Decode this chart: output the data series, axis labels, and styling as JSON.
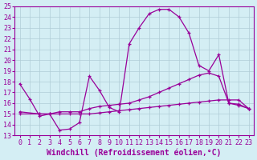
{
  "background_color": "#d4eef4",
  "grid_color": "#b0ccd6",
  "line_color": "#990099",
  "xlim": [
    -0.5,
    23.5
  ],
  "ylim": [
    13,
    25
  ],
  "xlabel": "Windchill (Refroidissement éolien,°C)",
  "xlabel_fontsize": 7.0,
  "xticks": [
    0,
    1,
    2,
    3,
    4,
    5,
    6,
    7,
    8,
    9,
    10,
    11,
    12,
    13,
    14,
    15,
    16,
    17,
    18,
    19,
    20,
    21,
    22,
    23
  ],
  "yticks": [
    13,
    14,
    15,
    16,
    17,
    18,
    19,
    20,
    21,
    22,
    23,
    24,
    25
  ],
  "tick_fontsize": 6.0,
  "curve1_x": [
    0,
    1,
    2,
    3,
    4,
    5,
    6,
    7,
    8,
    9,
    10,
    11,
    12,
    13,
    14,
    15,
    16,
    17,
    18,
    19,
    20,
    21,
    22,
    23
  ],
  "curve1_y": [
    17.8,
    16.4,
    14.8,
    15.0,
    13.5,
    13.6,
    14.2,
    18.5,
    17.2,
    15.6,
    15.2,
    21.5,
    23.0,
    24.3,
    24.7,
    24.7,
    24.0,
    22.5,
    19.5,
    19.0,
    20.5,
    16.0,
    15.9,
    15.5
  ],
  "curve2_x": [
    0,
    2,
    3,
    4,
    5,
    6,
    7,
    8,
    9,
    10,
    11,
    12,
    13,
    14,
    15,
    16,
    17,
    18,
    19,
    20,
    21,
    22,
    23
  ],
  "curve2_y": [
    15.2,
    15.0,
    15.0,
    15.2,
    15.2,
    15.2,
    15.5,
    15.7,
    15.8,
    15.9,
    16.0,
    16.3,
    16.6,
    17.0,
    17.4,
    17.8,
    18.2,
    18.6,
    18.8,
    18.5,
    16.0,
    15.8,
    15.5
  ],
  "curve3_x": [
    0,
    2,
    3,
    4,
    5,
    6,
    7,
    8,
    9,
    10,
    11,
    12,
    13,
    14,
    15,
    16,
    17,
    18,
    19,
    20,
    21,
    22,
    23
  ],
  "curve3_y": [
    15.0,
    15.0,
    15.0,
    15.0,
    15.0,
    15.0,
    15.0,
    15.1,
    15.2,
    15.3,
    15.4,
    15.5,
    15.6,
    15.7,
    15.8,
    15.9,
    16.0,
    16.1,
    16.2,
    16.3,
    16.3,
    16.3,
    15.5
  ]
}
